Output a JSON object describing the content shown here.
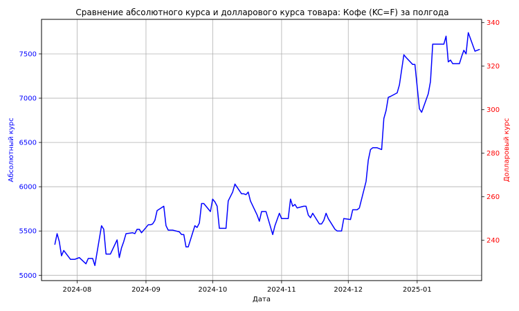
{
  "chart_data": {
    "type": "line",
    "title": "Сравнение абсолютного курса и долларового курса товара: Кофе (KC=F) за полгода",
    "xlabel": "Дата",
    "ylabel_left": "Абсолютный курс",
    "ylabel_right": "Долларовый курс",
    "x_ticks": [
      "2024-08",
      "2024-09",
      "2024-10",
      "2024-11",
      "2024-12",
      "2025-01"
    ],
    "x_range": [
      "2024-07-16",
      "2025-01-30"
    ],
    "y_left_ticks": [
      5000,
      5500,
      6000,
      6500,
      7000,
      7500
    ],
    "y_left_range": [
      4940,
      7890
    ],
    "y_right_ticks": [
      240,
      260,
      280,
      300,
      320,
      340
    ],
    "y_right_range": [
      221.5,
      341.5
    ],
    "grid": true,
    "colors": {
      "left": "#0000ff",
      "right": "#ff0000"
    },
    "series": [
      {
        "axis": "left",
        "color": "#0000ff",
        "points": [
          [
            "2024-07-22",
            5350
          ],
          [
            "2024-07-23",
            5470
          ],
          [
            "2024-07-24",
            5380
          ],
          [
            "2024-07-25",
            5220
          ],
          [
            "2024-07-26",
            5280
          ],
          [
            "2024-07-29",
            5180
          ],
          [
            "2024-07-30",
            5180
          ],
          [
            "2024-07-31",
            5180
          ],
          [
            "2024-08-01",
            5190
          ],
          [
            "2024-08-02",
            5200
          ],
          [
            "2024-08-05",
            5130
          ],
          [
            "2024-08-06",
            5190
          ],
          [
            "2024-08-07",
            5190
          ],
          [
            "2024-08-08",
            5190
          ],
          [
            "2024-08-09",
            5110
          ],
          [
            "2024-08-12",
            5560
          ],
          [
            "2024-08-13",
            5520
          ],
          [
            "2024-08-14",
            5240
          ],
          [
            "2024-08-15",
            5240
          ],
          [
            "2024-08-16",
            5240
          ],
          [
            "2024-08-19",
            5400
          ],
          [
            "2024-08-20",
            5200
          ],
          [
            "2024-08-21",
            5310
          ],
          [
            "2024-08-22",
            5380
          ],
          [
            "2024-08-23",
            5470
          ],
          [
            "2024-08-26",
            5480
          ],
          [
            "2024-08-27",
            5470
          ],
          [
            "2024-08-28",
            5520
          ],
          [
            "2024-08-29",
            5520
          ],
          [
            "2024-08-30",
            5480
          ],
          [
            "2024-09-02",
            5570
          ],
          [
            "2024-09-03",
            5570
          ],
          [
            "2024-09-04",
            5580
          ],
          [
            "2024-09-05",
            5620
          ],
          [
            "2024-09-06",
            5730
          ],
          [
            "2024-09-09",
            5780
          ],
          [
            "2024-09-10",
            5560
          ],
          [
            "2024-09-11",
            5510
          ],
          [
            "2024-09-12",
            5510
          ],
          [
            "2024-09-13",
            5510
          ],
          [
            "2024-09-16",
            5490
          ],
          [
            "2024-09-17",
            5460
          ],
          [
            "2024-09-18",
            5460
          ],
          [
            "2024-09-19",
            5320
          ],
          [
            "2024-09-20",
            5320
          ],
          [
            "2024-09-23",
            5560
          ],
          [
            "2024-09-24",
            5540
          ],
          [
            "2024-09-25",
            5590
          ],
          [
            "2024-09-26",
            5810
          ],
          [
            "2024-09-27",
            5810
          ],
          [
            "2024-09-30",
            5720
          ],
          [
            "2024-10-01",
            5860
          ],
          [
            "2024-10-02",
            5830
          ],
          [
            "2024-10-03",
            5780
          ],
          [
            "2024-10-04",
            5530
          ],
          [
            "2024-10-07",
            5530
          ],
          [
            "2024-10-08",
            5840
          ],
          [
            "2024-10-09",
            5890
          ],
          [
            "2024-10-10",
            5940
          ],
          [
            "2024-10-11",
            6030
          ],
          [
            "2024-10-14",
            5920
          ],
          [
            "2024-10-15",
            5920
          ],
          [
            "2024-10-16",
            5910
          ],
          [
            "2024-10-17",
            5940
          ],
          [
            "2024-10-18",
            5840
          ],
          [
            "2024-10-21",
            5680
          ],
          [
            "2024-10-22",
            5610
          ],
          [
            "2024-10-23",
            5720
          ],
          [
            "2024-10-24",
            5720
          ],
          [
            "2024-10-25",
            5720
          ],
          [
            "2024-10-28",
            5460
          ],
          [
            "2024-10-29",
            5560
          ],
          [
            "2024-10-30",
            5630
          ],
          [
            "2024-10-31",
            5700
          ],
          [
            "2024-11-01",
            5640
          ],
          [
            "2024-11-04",
            5640
          ],
          [
            "2024-11-05",
            5860
          ],
          [
            "2024-11-06",
            5780
          ],
          [
            "2024-11-07",
            5800
          ],
          [
            "2024-11-08",
            5760
          ],
          [
            "2024-11-11",
            5780
          ],
          [
            "2024-11-12",
            5780
          ],
          [
            "2024-11-13",
            5680
          ],
          [
            "2024-11-14",
            5650
          ],
          [
            "2024-11-15",
            5700
          ],
          [
            "2024-11-18",
            5580
          ],
          [
            "2024-11-19",
            5580
          ],
          [
            "2024-11-20",
            5620
          ],
          [
            "2024-11-21",
            5700
          ],
          [
            "2024-11-22",
            5640
          ],
          [
            "2024-11-25",
            5520
          ],
          [
            "2024-11-26",
            5500
          ],
          [
            "2024-11-27",
            5500
          ],
          [
            "2024-11-28",
            5500
          ],
          [
            "2024-11-29",
            5640
          ],
          [
            "2024-12-02",
            5630
          ],
          [
            "2024-12-03",
            5740
          ],
          [
            "2024-12-04",
            5740
          ],
          [
            "2024-12-05",
            5740
          ],
          [
            "2024-12-06",
            5760
          ],
          [
            "2024-12-09",
            6060
          ],
          [
            "2024-12-10",
            6300
          ],
          [
            "2024-12-11",
            6420
          ],
          [
            "2024-12-12",
            6440
          ],
          [
            "2024-12-13",
            6440
          ],
          [
            "2024-12-14",
            6440
          ],
          [
            "2024-12-16",
            6420
          ],
          [
            "2024-12-17",
            6770
          ],
          [
            "2024-12-18",
            6860
          ],
          [
            "2024-12-19",
            7010
          ],
          [
            "2024-12-20",
            7020
          ],
          [
            "2024-12-23",
            7060
          ],
          [
            "2024-12-24",
            7150
          ],
          [
            "2024-12-26",
            7490
          ],
          [
            "2024-12-27",
            7460
          ],
          [
            "2024-12-30",
            7380
          ],
          [
            "2024-12-31",
            7380
          ],
          [
            "2025-01-02",
            6880
          ],
          [
            "2025-01-03",
            6840
          ],
          [
            "2025-01-06",
            7050
          ],
          [
            "2025-01-07",
            7190
          ],
          [
            "2025-01-08",
            7610
          ],
          [
            "2025-01-09",
            7610
          ],
          [
            "2025-01-10",
            7610
          ],
          [
            "2025-01-13",
            7610
          ],
          [
            "2025-01-14",
            7700
          ],
          [
            "2025-01-15",
            7410
          ],
          [
            "2025-01-16",
            7430
          ],
          [
            "2025-01-17",
            7390
          ],
          [
            "2025-01-20",
            7390
          ],
          [
            "2025-01-21",
            7470
          ],
          [
            "2025-01-22",
            7540
          ],
          [
            "2025-01-23",
            7500
          ],
          [
            "2025-01-24",
            7740
          ],
          [
            "2025-01-27",
            7530
          ],
          [
            "2025-01-28",
            7540
          ],
          [
            "2025-01-29",
            7550
          ]
        ]
      }
    ]
  }
}
